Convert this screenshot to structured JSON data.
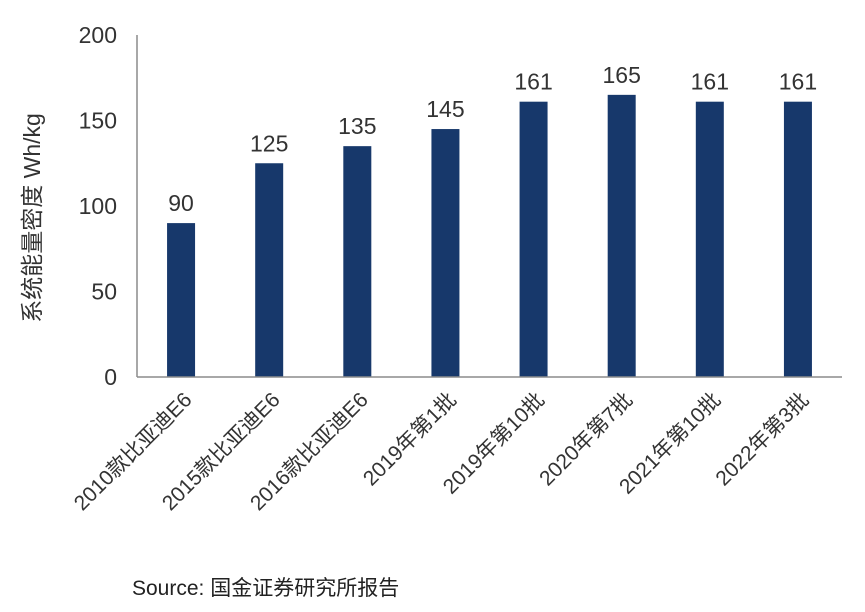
{
  "chart_data": {
    "type": "bar",
    "categories": [
      "2010款比亚迪E6",
      "2015款比亚迪E6",
      "2016款比亚迪E6",
      "2019年第1批",
      "2019年第10批",
      "2020年第7批",
      "2021年第10批",
      "2022年第3批"
    ],
    "values": [
      90,
      125,
      135,
      145,
      161,
      165,
      161,
      161
    ],
    "ylabel": "系统能量密度 Wh/kg",
    "ylim": [
      0,
      200
    ],
    "yticks": [
      0,
      50,
      100,
      150,
      200
    ],
    "grid": false,
    "legend": "none",
    "colors": {
      "bar": "#17386B",
      "axis": "#8C8C8C",
      "text": "#333333"
    }
  },
  "source": "Source: 国金证券研究所报告"
}
